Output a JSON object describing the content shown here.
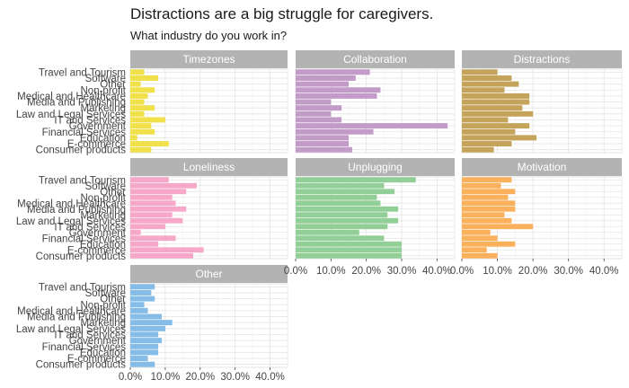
{
  "chart_data": {
    "type": "bar",
    "orientation": "horizontal",
    "title": "Distractions are a big struggle for caregivers.",
    "subtitle": "What industry do you work in?",
    "categories": [
      "Travel and Tourism",
      "Software",
      "Other",
      "Non-profit",
      "Medical and Healthcare",
      "Media and Publishing",
      "Marketing",
      "Law and Legal Services",
      "IT and Services",
      "Government",
      "Financial Services",
      "Education",
      "E-commerce",
      "Consumer products"
    ],
    "xlim": [
      0,
      0.45
    ],
    "xticks": [
      "0.0%",
      "10.0%",
      "20.0%",
      "30.0%",
      "40.0%"
    ],
    "facets": [
      {
        "name": "Timezones",
        "color": "#f0e04a",
        "values": [
          0.04,
          0.08,
          0.03,
          0.07,
          0.05,
          0.04,
          0.07,
          0.04,
          0.1,
          0.06,
          0.07,
          0.02,
          0.11,
          0.06
        ]
      },
      {
        "name": "Collaboration",
        "color": "#c39bc9",
        "values": [
          0.21,
          0.17,
          0.15,
          0.24,
          0.23,
          0.1,
          0.13,
          0.1,
          0.13,
          0.43,
          0.22,
          0.15,
          0.15,
          0.16
        ]
      },
      {
        "name": "Distractions",
        "color": "#c4a45a",
        "values": [
          0.1,
          0.14,
          0.16,
          0.12,
          0.19,
          0.19,
          0.17,
          0.2,
          0.13,
          0.19,
          0.15,
          0.21,
          0.14,
          0.09
        ]
      },
      {
        "name": "Loneliness",
        "color": "#f7a8c8",
        "values": [
          0.11,
          0.19,
          0.16,
          0.12,
          0.13,
          0.16,
          0.12,
          0.15,
          0.1,
          0.03,
          0.13,
          0.08,
          0.21,
          0.18
        ]
      },
      {
        "name": "Unplugging",
        "color": "#92cf97",
        "values": [
          0.34,
          0.25,
          0.28,
          0.23,
          0.24,
          0.29,
          0.26,
          0.29,
          0.26,
          0.18,
          0.25,
          0.3,
          0.3,
          0.3
        ]
      },
      {
        "name": "Motivation",
        "color": "#fbb05c",
        "values": [
          0.14,
          0.11,
          0.15,
          0.13,
          0.15,
          0.15,
          0.12,
          0.14,
          0.2,
          0.08,
          0.1,
          0.15,
          0.07,
          0.1
        ]
      },
      {
        "name": "Other",
        "color": "#86bde8",
        "values": [
          0.07,
          0.06,
          0.07,
          0.04,
          0.05,
          0.09,
          0.12,
          0.1,
          0.08,
          0.09,
          0.08,
          0.08,
          0.05,
          0.07
        ]
      }
    ]
  }
}
